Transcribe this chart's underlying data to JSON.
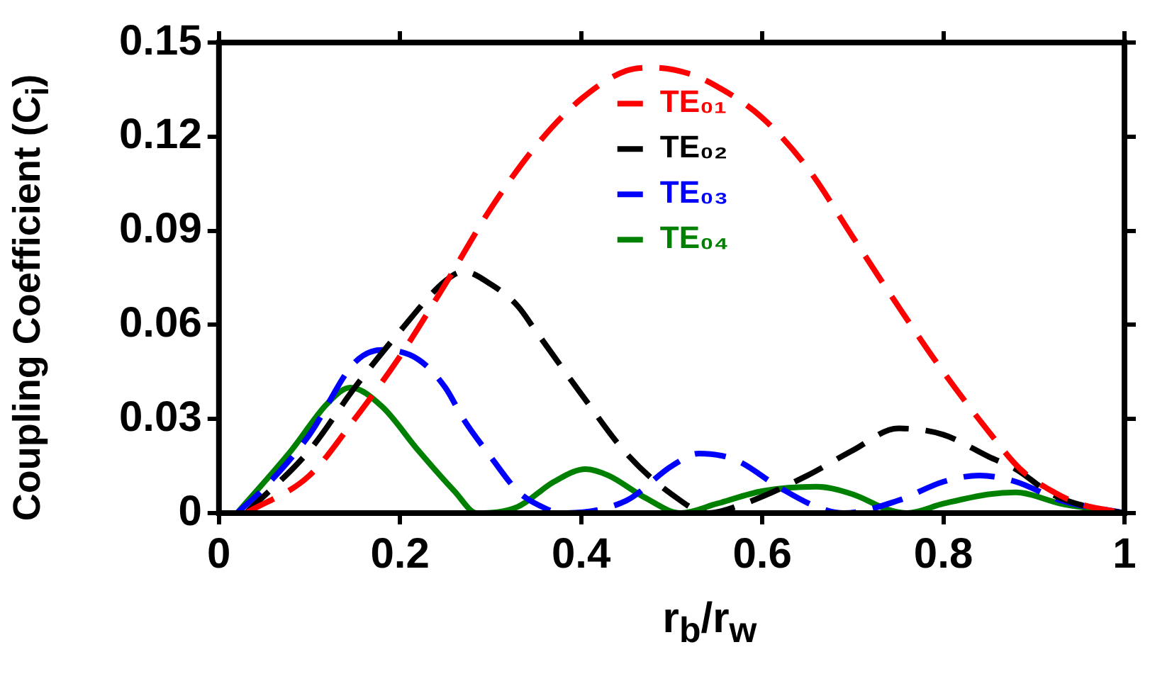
{
  "chart_data": {
    "type": "line",
    "xlabel": "r$_{b}$/r$_{w}$",
    "ylabel": "Coupling Coefficient (C$_{i}$)",
    "xlim": [
      0,
      1
    ],
    "xticks": [
      0,
      0.2,
      0.4,
      0.6,
      0.8,
      1
    ],
    "ylim": [
      0,
      0.15
    ],
    "yticks": [
      0,
      0.03,
      0.06,
      0.09,
      0.12,
      0.15
    ],
    "grid": false,
    "legend": "top",
    "marker": "none",
    "series": [
      {
        "name": "TE₀₁",
        "color": "#ff0000",
        "line_style": "dashed",
        "x": [
          0.03,
          0.1,
          0.15,
          0.2,
          0.25,
          0.3,
          0.35,
          0.4,
          0.45,
          0.48,
          0.52,
          0.55,
          0.6,
          0.65,
          0.7,
          0.75,
          0.8,
          0.85,
          0.885,
          0.92,
          0.95,
          1
        ],
        "values": [
          0,
          0.012,
          0.03,
          0.05,
          0.073,
          0.097,
          0.117,
          0.132,
          0.141,
          0.142,
          0.14,
          0.136,
          0.126,
          0.11,
          0.088,
          0.066,
          0.045,
          0.026,
          0.014,
          0.007,
          0.003,
          0
        ]
      },
      {
        "name": "TE₀₂",
        "color": "#000000",
        "line_style": "dashed",
        "x": [
          0.03,
          0.1,
          0.15,
          0.2,
          0.25,
          0.27,
          0.3,
          0.33,
          0.35,
          0.4,
          0.45,
          0.5,
          0.54,
          0.58,
          0.65,
          0.7,
          0.75,
          0.8,
          0.85,
          0.88,
          0.92,
          0.96,
          1
        ],
        "values": [
          0,
          0.02,
          0.04,
          0.058,
          0.074,
          0.077,
          0.073,
          0.066,
          0.058,
          0.038,
          0.019,
          0.006,
          0,
          0.003,
          0.012,
          0.02,
          0.027,
          0.025,
          0.018,
          0.014,
          0.006,
          0.002,
          0
        ]
      },
      {
        "name": "TE₀₃",
        "color": "#0000ff",
        "line_style": "dashed",
        "x": [
          0.02,
          0.05,
          0.1,
          0.15,
          0.18,
          0.22,
          0.25,
          0.27,
          0.3,
          0.33,
          0.35,
          0.38,
          0.45,
          0.5,
          0.53,
          0.57,
          0.62,
          0.66,
          0.69,
          0.75,
          0.8,
          0.84,
          0.88,
          0.93,
          1
        ],
        "values": [
          0,
          0.008,
          0.025,
          0.048,
          0.052,
          0.049,
          0.04,
          0.03,
          0.018,
          0.007,
          0.003,
          0,
          0.004,
          0.015,
          0.019,
          0.017,
          0.008,
          0.002,
          0,
          0.004,
          0.01,
          0.012,
          0.01,
          0.004,
          0
        ]
      },
      {
        "name": "TE₀₄",
        "color": "#008000",
        "line_style": "solid",
        "x": [
          0.02,
          0.08,
          0.12,
          0.145,
          0.18,
          0.22,
          0.26,
          0.285,
          0.33,
          0.37,
          0.405,
          0.43,
          0.47,
          0.51,
          0.55,
          0.6,
          0.66,
          0.7,
          0.74,
          0.76,
          0.8,
          0.85,
          0.88,
          0.93,
          1
        ],
        "values": [
          0,
          0.02,
          0.035,
          0.04,
          0.034,
          0.02,
          0.007,
          0,
          0.002,
          0.01,
          0.014,
          0.012,
          0.005,
          0,
          0.003,
          0.007,
          0.0084,
          0.006,
          0.001,
          0,
          0.003,
          0.006,
          0.0066,
          0.003,
          0
        ]
      }
    ]
  }
}
